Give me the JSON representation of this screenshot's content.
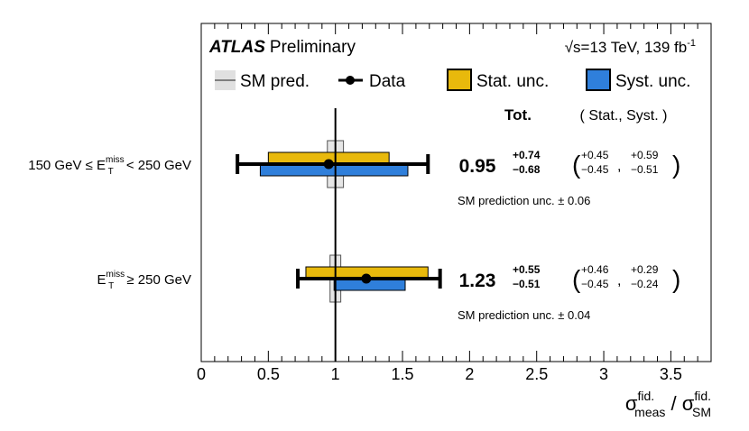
{
  "chart_data": {
    "type": "forest",
    "title_bold": "ATLAS",
    "title_rest": "Preliminary",
    "energy_label": "√s=13 TeV, 139 fb",
    "energy_sup": "-1",
    "legend": [
      {
        "name": "SM pred.",
        "kind": "line",
        "color": "#7f7f7f"
      },
      {
        "name": "Data",
        "kind": "marker",
        "color": "#000000"
      },
      {
        "name": "Stat. unc.",
        "kind": "box",
        "color": "#e8b90c"
      },
      {
        "name": "Syst. unc.",
        "kind": "box",
        "color": "#2f7fdb"
      }
    ],
    "header_tot": "Tot.",
    "header_components": "( Stat., Syst. )",
    "xlim": [
      0,
      3.8
    ],
    "xticks": [
      0,
      0.5,
      1,
      1.5,
      2,
      2.5,
      3,
      3.5
    ],
    "xtick_labels": [
      "0",
      "0.5",
      "1",
      "1.5",
      "2",
      "2.5",
      "3",
      "3.5"
    ],
    "sm_value": 1,
    "xlabel": {
      "base1": "σ",
      "sup1": "fid.",
      "sub1": "meas",
      "sep": " / ",
      "base2": "σ",
      "sup2": "fid.",
      "sub2": "SM"
    },
    "bins": [
      {
        "label_pre": "150 GeV ≤ E",
        "label_sup": "miss",
        "label_sub": "T",
        "label_post": " < 250 GeV",
        "value": 0.95,
        "value_text": "0.95",
        "tot_up": 0.74,
        "tot_down": 0.68,
        "tot_up_text": "+0.74",
        "tot_down_text": "−0.68",
        "stat_up": 0.45,
        "stat_down": 0.45,
        "stat_up_text": "+0.45",
        "stat_down_text": "−0.45",
        "syst_up": 0.59,
        "syst_down": 0.51,
        "syst_up_text": "+0.59",
        "syst_down_text": "−0.51",
        "sm_unc": 0.06,
        "sm_text": "SM prediction unc. ± 0.06"
      },
      {
        "label_pre": "E",
        "label_sup": "miss",
        "label_sub": "T",
        "label_post": " ≥ 250 GeV",
        "value": 1.23,
        "value_text": "1.23",
        "tot_up": 0.55,
        "tot_down": 0.51,
        "tot_up_text": "+0.55",
        "tot_down_text": "−0.51",
        "stat_up": 0.46,
        "stat_down": 0.45,
        "stat_up_text": "+0.46",
        "stat_down_text": "−0.45",
        "syst_up": 0.29,
        "syst_down": 0.24,
        "syst_up_text": "+0.29",
        "syst_down_text": "−0.24",
        "sm_unc": 0.04,
        "sm_text": "SM prediction unc. ± 0.04"
      }
    ]
  }
}
